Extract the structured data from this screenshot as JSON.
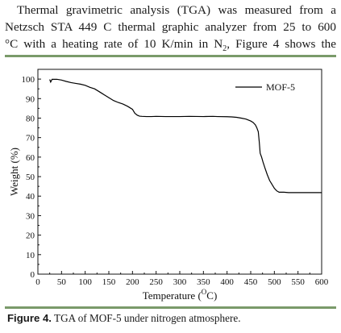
{
  "paragraph": {
    "line1": "Thermal gravimetric analysis (TGA) was measured from a",
    "line2": "Netzsch STA 449 C thermal graphic analyzer from 25 to 600",
    "line3_pre": "°C with a heating rate of 10 K/min in N",
    "line3_sub": "2",
    "line3_post": ", Figure 4 shows the"
  },
  "caption": {
    "label": "Figure 4.",
    "text": " TGA of MOF-5 under nitrogen atmosphere."
  },
  "chart_data": {
    "type": "line",
    "xlabel": "Temperature (",
    "xlabel_sup": "O",
    "xlabel_end": "C)",
    "ylabel": "Weight (%)",
    "xlim": [
      0,
      600
    ],
    "ylim": [
      0,
      105
    ],
    "xticks": [
      0,
      50,
      100,
      150,
      200,
      250,
      300,
      350,
      400,
      450,
      500,
      550,
      600
    ],
    "yticks": [
      0,
      10,
      20,
      30,
      40,
      50,
      60,
      70,
      80,
      90,
      100
    ],
    "grid": false,
    "legend_position": "top-right",
    "series": [
      {
        "name": "MOF-5",
        "x": [
          25,
          27,
          30,
          40,
          50,
          60,
          70,
          80,
          90,
          100,
          110,
          120,
          130,
          140,
          150,
          160,
          170,
          180,
          190,
          200,
          205,
          210,
          215,
          220,
          230,
          240,
          250,
          270,
          300,
          320,
          350,
          370,
          380,
          400,
          410,
          420,
          430,
          440,
          450,
          455,
          460,
          463,
          466,
          468,
          470,
          473,
          476,
          480,
          485,
          490,
          495,
          500,
          505,
          510,
          520,
          530,
          550,
          570,
          600
        ],
        "y": [
          99.8,
          98.5,
          99.9,
          99.9,
          99.5,
          98.8,
          98.2,
          97.8,
          97.4,
          96.8,
          95.8,
          95.0,
          93.5,
          92.0,
          90.5,
          89.0,
          88.0,
          87.2,
          86.0,
          84.5,
          82.5,
          81.5,
          81.0,
          80.9,
          80.8,
          80.8,
          80.9,
          80.8,
          80.8,
          80.9,
          80.8,
          80.9,
          80.8,
          80.7,
          80.6,
          80.4,
          80.0,
          79.5,
          78.5,
          77.8,
          76.5,
          75.0,
          73.0,
          68.0,
          62.0,
          60.0,
          57.5,
          54.5,
          51.0,
          48.0,
          46.0,
          44.0,
          42.7,
          42.0,
          42.0,
          41.8,
          41.8,
          41.8,
          41.8
        ]
      }
    ]
  }
}
